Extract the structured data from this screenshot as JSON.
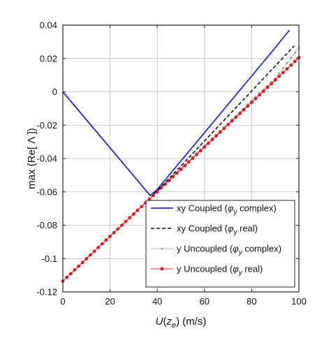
{
  "chart_data": {
    "type": "line",
    "xlabel": {
      "main": "U",
      "paren_open": "(",
      "var": "z",
      "sub": "e",
      "paren_close": ")",
      "unit": " (m/s)"
    },
    "ylabel": "max (Re[ Λ ])",
    "xlim": [
      0,
      100
    ],
    "ylim": [
      -0.12,
      0.04
    ],
    "xticks": [
      0,
      20,
      40,
      60,
      80,
      100
    ],
    "yticks": [
      0.04,
      0.02,
      0,
      -0.02,
      -0.04,
      -0.06,
      -0.08,
      -0.1,
      -0.12
    ],
    "ytick_labels": [
      "0.04",
      "0.02",
      "0",
      "-0.02",
      "-0.04",
      "-0.06",
      "-0.08",
      "-0.1",
      "-0.12"
    ],
    "grid": true,
    "legend_position": "bottom-right",
    "series": [
      {
        "name": "xy Coupled (φy complex)",
        "label_prefix": "xy Coupled   (",
        "label_phi": "φ",
        "label_sub": "y",
        "label_suffix": " complex)",
        "color": "#1f2bd6",
        "style": "solid",
        "x": [
          0,
          10,
          20,
          30,
          37,
          40,
          50,
          60,
          70,
          80,
          90,
          96
        ],
        "y": [
          0,
          -0.0168,
          -0.0336,
          -0.0504,
          -0.0622,
          -0.0585,
          -0.0415,
          -0.0245,
          -0.0075,
          0.0095,
          0.0265,
          0.037
        ]
      },
      {
        "name": "xy Coupled (φy real)",
        "label_prefix": "xy Coupled   (",
        "label_phi": "φ",
        "label_sub": "y",
        "label_suffix": " real)",
        "color": "#111111",
        "style": "dashed",
        "x": [
          0,
          10,
          20,
          30,
          37,
          40,
          50,
          60,
          70,
          80,
          90,
          98
        ],
        "y": [
          0,
          -0.0168,
          -0.0336,
          -0.0504,
          -0.0622,
          -0.0595,
          -0.0445,
          -0.0295,
          -0.0145,
          0.0005,
          0.0155,
          0.0275
        ]
      },
      {
        "name": "y Uncoupled (φy complex)",
        "label_prefix": "y Uncoupled (",
        "label_phi": "φ",
        "label_sub": "y",
        "label_suffix": " complex)",
        "color": "#8a8a8a",
        "style": "dotted-marker",
        "x": [
          0,
          10,
          20,
          30,
          40,
          50,
          60,
          70,
          80,
          90,
          100
        ],
        "y": [
          -0.1135,
          -0.1,
          -0.0865,
          -0.073,
          -0.0595,
          -0.046,
          -0.0325,
          -0.019,
          -0.0055,
          0.008,
          0.0265
        ]
      },
      {
        "name": "y Uncoupled (φy real)",
        "label_prefix": "y Uncoupled (",
        "label_phi": "φ",
        "label_sub": "y",
        "label_suffix": " real)",
        "color": "#e8141b",
        "style": "solid-marker",
        "x": [
          0,
          10,
          20,
          30,
          40,
          50,
          60,
          70,
          80,
          90,
          100
        ],
        "y": [
          -0.1135,
          -0.1001,
          -0.0867,
          -0.0733,
          -0.0599,
          -0.0465,
          -0.0331,
          -0.0197,
          -0.0063,
          0.0071,
          0.0205
        ]
      }
    ]
  }
}
